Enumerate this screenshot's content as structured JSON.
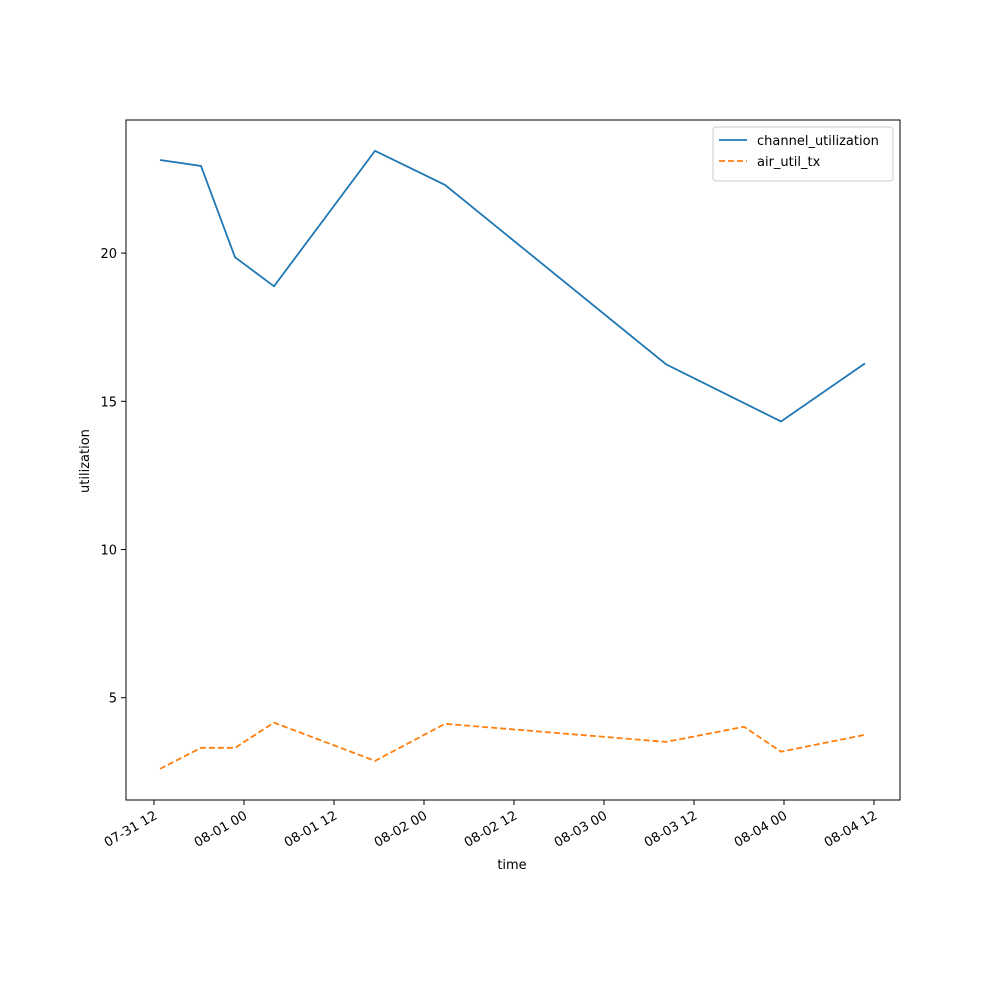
{
  "chart_data": {
    "type": "line",
    "xlabel": "time",
    "ylabel": "utilization",
    "x": [
      "07-31 12:48",
      "07-31 18:16",
      "07-31 22:48",
      "08-01 04:00",
      "08-01 17:28",
      "08-02 02:48",
      "08-03 08:16",
      "08-03 18:40",
      "08-03 23:36",
      "08-04 10:48"
    ],
    "series": [
      {
        "name": "channel_utilization",
        "color": "#1f77b4",
        "dash": "solid",
        "values": [
          23.14,
          22.94,
          19.86,
          18.88,
          23.45,
          22.3,
          16.25,
          14.94,
          14.32,
          16.28
        ]
      },
      {
        "name": "air_util_tx",
        "color": "#ff7f0e",
        "dash": "dashed",
        "values": [
          2.6,
          3.31,
          3.31,
          4.16,
          2.87,
          4.12,
          3.51,
          4.02,
          3.18,
          3.75
        ]
      }
    ],
    "xlim": [
      "07-31 08:16",
      "08-04 15:28"
    ],
    "xticks": [
      "07-31 12",
      "08-01 00",
      "08-01 12",
      "08-02 00",
      "08-02 12",
      "08-03 00",
      "08-03 12",
      "08-04 00",
      "08-04 12"
    ],
    "ylim": [
      1.55,
      24.49
    ],
    "yticks": [
      5,
      10,
      15,
      20
    ],
    "grid": false,
    "legend": "upper right"
  }
}
